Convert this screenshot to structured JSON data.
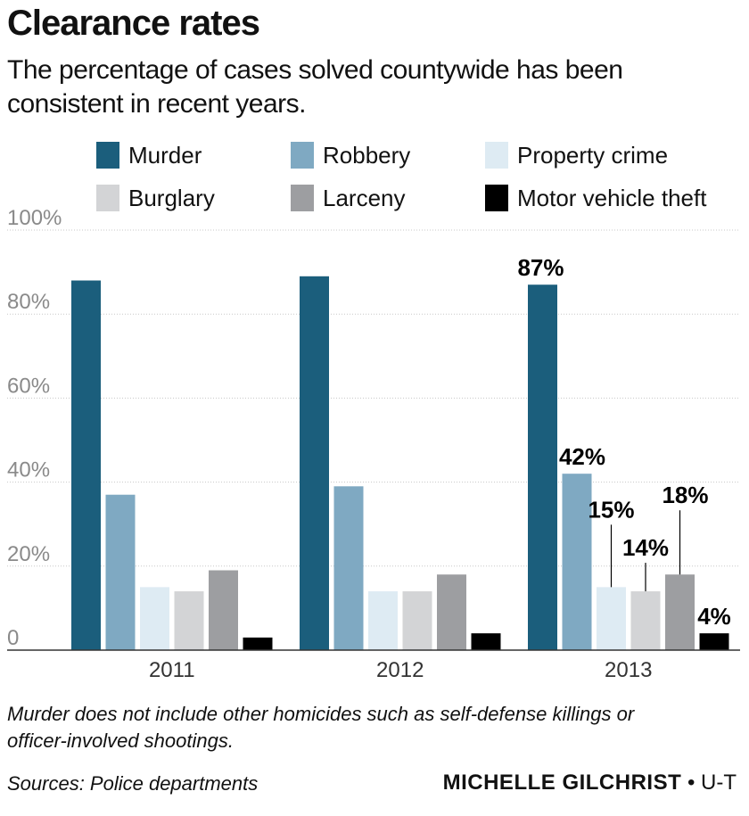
{
  "header": {
    "title": "Clearance rates",
    "subtitle": "The percentage of cases solved countywide has been consistent in recent years."
  },
  "footer": {
    "note": "Murder does not include other homicides such as self-defense killings or officer-involved shootings.",
    "sources": "Sources: Police departments",
    "credit_author": "MICHELLE GILCHRIST",
    "credit_separator": "•",
    "credit_org": "U-T"
  },
  "chart_data": {
    "type": "bar",
    "categories": [
      "2011",
      "2012",
      "2013"
    ],
    "series": [
      {
        "name": "Murder",
        "color": "#1b5e7c",
        "values": [
          88,
          89,
          87
        ]
      },
      {
        "name": "Robbery",
        "color": "#7fa9c2",
        "values": [
          37,
          39,
          42
        ]
      },
      {
        "name": "Property crime",
        "color": "#deebf3",
        "values": [
          15,
          14,
          15
        ]
      },
      {
        "name": "Burglary",
        "color": "#d3d4d6",
        "values": [
          14,
          14,
          14
        ]
      },
      {
        "name": "Larceny",
        "color": "#9d9ea1",
        "values": [
          19,
          18,
          18
        ]
      },
      {
        "name": "Motor vehicle theft",
        "color": "#000000",
        "values": [
          3,
          4,
          4
        ]
      }
    ],
    "data_labels": [
      {
        "series": "Murder",
        "category": "2013",
        "text": "87%"
      },
      {
        "series": "Robbery",
        "category": "2013",
        "text": "42%"
      },
      {
        "series": "Property crime",
        "category": "2013",
        "text": "15%"
      },
      {
        "series": "Burglary",
        "category": "2013",
        "text": "14%"
      },
      {
        "series": "Larceny",
        "category": "2013",
        "text": "18%"
      },
      {
        "series": "Motor vehicle theft",
        "category": "2013",
        "text": "4%"
      }
    ],
    "y_ticks": [
      {
        "value": 0,
        "label": "0"
      },
      {
        "value": 20,
        "label": "20%"
      },
      {
        "value": 40,
        "label": "40%"
      },
      {
        "value": 60,
        "label": "60%"
      },
      {
        "value": 80,
        "label": "80%"
      },
      {
        "value": 100,
        "label": "100%"
      }
    ],
    "ylim": [
      0,
      100
    ],
    "grid": true,
    "legend_position": "top"
  }
}
